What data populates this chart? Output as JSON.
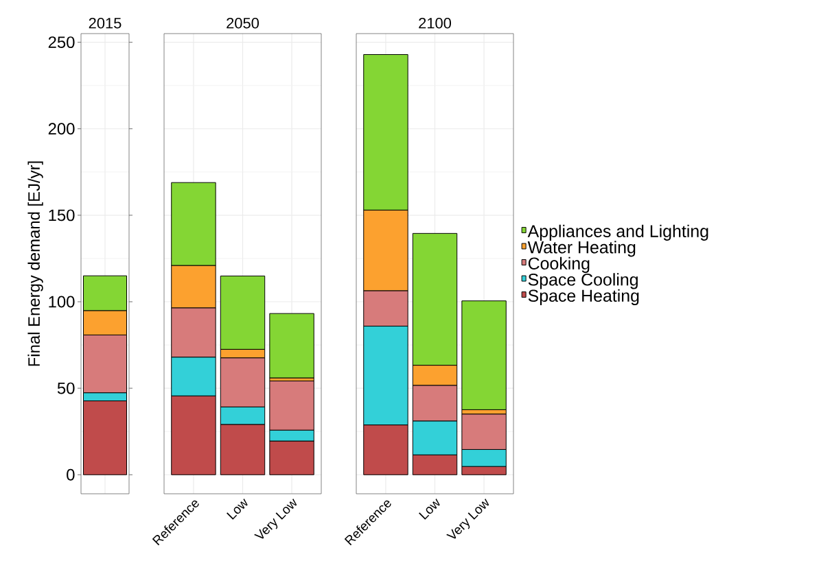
{
  "chart_data": [
    {
      "type": "bar",
      "title": "2015",
      "ylabel": "Final Energy demand [EJ/yr]",
      "stacked": true,
      "categories": [
        null
      ],
      "ylim": [
        -11,
        255
      ],
      "yticks": [
        0,
        50,
        100,
        150,
        200,
        250
      ],
      "grid": true,
      "tick_labels": "y",
      "legend": false,
      "series": [
        {
          "color": "#c04b4b",
          "values": [
            42.7
          ]
        },
        {
          "color": "#33d0d8",
          "values": [
            4.7
          ]
        },
        {
          "color": "#d77b7b",
          "values": [
            33.4
          ]
        },
        {
          "color": "#fca12f",
          "values": [
            14.1
          ]
        },
        {
          "color": "#84d634",
          "values": [
            20.1
          ]
        }
      ]
    },
    {
      "type": "bar",
      "title": "2050",
      "stacked": true,
      "categories": [
        "Reference",
        "Low",
        "Very Low"
      ],
      "ylim": [
        -11,
        255
      ],
      "yticks": [
        0,
        50,
        100,
        150,
        200,
        250
      ],
      "grid": true,
      "tick_labels": "x",
      "legend": false,
      "series": [
        {
          "color": "#c04b4b",
          "values": [
            45.6,
            29.1,
            19.5
          ]
        },
        {
          "color": "#33d0d8",
          "values": [
            22.4,
            10.1,
            6.3
          ]
        },
        {
          "color": "#d77b7b",
          "values": [
            28.5,
            28.4,
            28.4
          ]
        },
        {
          "color": "#fca12f",
          "values": [
            24.5,
            4.9,
            1.8
          ]
        },
        {
          "color": "#84d634",
          "values": [
            47.9,
            42.4,
            37.2
          ]
        }
      ]
    },
    {
      "type": "bar",
      "title": "2100",
      "stacked": true,
      "categories": [
        "Reference",
        "Low",
        "Very Low"
      ],
      "ylim": [
        -11,
        255
      ],
      "yticks": [
        0,
        50,
        100,
        150,
        200,
        250
      ],
      "grid": true,
      "tick_labels": "x",
      "legend": "right",
      "series": [
        {
          "name": "Space Heating",
          "color": "#c04b4b",
          "values": [
            28.8,
            11.5,
            4.8
          ]
        },
        {
          "name": "Space Cooling",
          "color": "#33d0d8",
          "values": [
            57.1,
            19.6,
            9.8
          ]
        },
        {
          "name": "Cooking",
          "color": "#d77b7b",
          "values": [
            20.5,
            20.6,
            20.5
          ]
        },
        {
          "name": "Water Heating",
          "color": "#fca12f",
          "values": [
            46.6,
            11.6,
            2.5
          ]
        },
        {
          "name": "Appliances and Lighting",
          "color": "#84d634",
          "values": [
            89.9,
            76.2,
            62.9
          ]
        }
      ]
    }
  ]
}
